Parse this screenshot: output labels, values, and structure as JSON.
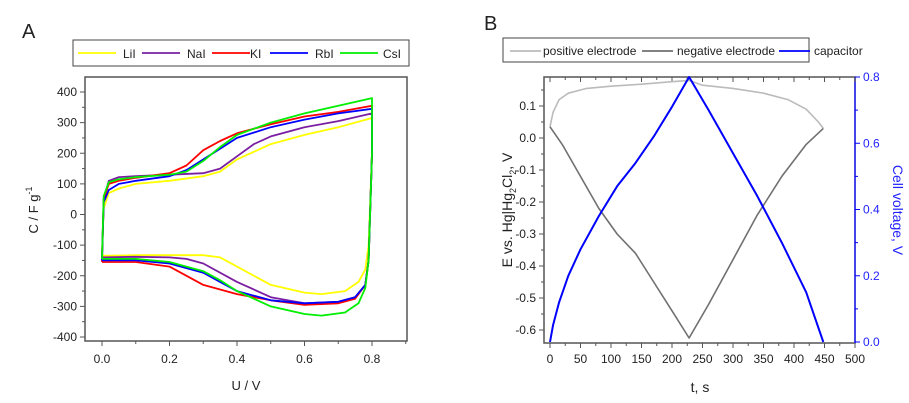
{
  "chart_data": [
    {
      "panel_label": "A",
      "type": "line",
      "title": "",
      "xlabel": "U / V",
      "ylabel": "C / F g",
      "ylabel_superscript": "-1",
      "xlim": [
        -0.05,
        0.9
      ],
      "ylim": [
        -400,
        450
      ],
      "xticks": [
        0.0,
        0.2,
        0.4,
        0.6,
        0.8
      ],
      "xtick_labels": [
        "0.0",
        "0.2",
        "0.4",
        "0.6",
        "0.8"
      ],
      "yticks": [
        -400,
        -300,
        -200,
        -100,
        0,
        100,
        200,
        300,
        400
      ],
      "ytick_labels": [
        "-400",
        "-300",
        "-200",
        "-100",
        "0",
        "100",
        "200",
        "300",
        "400"
      ],
      "grid": false,
      "legend_position": "top",
      "series": [
        {
          "name": "LiI",
          "color": "#ffff00",
          "x": [
            0.0,
            0.005,
            0.02,
            0.05,
            0.1,
            0.2,
            0.3,
            0.35,
            0.4,
            0.5,
            0.6,
            0.7,
            0.8,
            0.8,
            0.79,
            0.78,
            0.76,
            0.72,
            0.65,
            0.6,
            0.5,
            0.4,
            0.35,
            0.3,
            0.2,
            0.1,
            0.0,
            0.0
          ],
          "y": [
            -130,
            20,
            70,
            85,
            100,
            110,
            125,
            140,
            180,
            230,
            260,
            285,
            315,
            200,
            -100,
            -180,
            -220,
            -250,
            -260,
            -255,
            -230,
            -170,
            -140,
            -133,
            -133,
            -133,
            -135,
            -130
          ]
        },
        {
          "name": "NaI",
          "color": "#7b1fa2",
          "x": [
            0.0,
            0.005,
            0.02,
            0.05,
            0.1,
            0.2,
            0.3,
            0.35,
            0.4,
            0.45,
            0.5,
            0.6,
            0.7,
            0.8,
            0.8,
            0.79,
            0.78,
            0.75,
            0.7,
            0.6,
            0.5,
            0.4,
            0.3,
            0.25,
            0.2,
            0.1,
            0.0,
            0.0
          ],
          "y": [
            -140,
            50,
            110,
            122,
            125,
            130,
            135,
            150,
            190,
            230,
            255,
            285,
            305,
            330,
            200,
            -150,
            -230,
            -270,
            -285,
            -290,
            -270,
            -220,
            -160,
            -145,
            -140,
            -138,
            -140,
            -140
          ]
        },
        {
          "name": "KI",
          "color": "#ff0000",
          "x": [
            0.0,
            0.005,
            0.02,
            0.05,
            0.1,
            0.2,
            0.25,
            0.3,
            0.35,
            0.4,
            0.5,
            0.6,
            0.7,
            0.8,
            0.8,
            0.79,
            0.78,
            0.75,
            0.7,
            0.6,
            0.5,
            0.4,
            0.3,
            0.2,
            0.1,
            0.0,
            0.0
          ],
          "y": [
            -155,
            50,
            100,
            110,
            120,
            135,
            160,
            210,
            240,
            265,
            295,
            320,
            335,
            355,
            200,
            -150,
            -230,
            -275,
            -290,
            -295,
            -280,
            -260,
            -230,
            -170,
            -155,
            -155,
            -155
          ]
        },
        {
          "name": "RbI",
          "color": "#0000ff",
          "x": [
            0.0,
            0.005,
            0.02,
            0.05,
            0.1,
            0.2,
            0.25,
            0.3,
            0.35,
            0.4,
            0.5,
            0.6,
            0.7,
            0.8,
            0.8,
            0.79,
            0.78,
            0.75,
            0.7,
            0.6,
            0.5,
            0.4,
            0.35,
            0.3,
            0.2,
            0.1,
            0.0,
            0.0
          ],
          "y": [
            -150,
            40,
            80,
            100,
            110,
            125,
            145,
            180,
            215,
            250,
            285,
            310,
            330,
            345,
            200,
            -150,
            -230,
            -270,
            -285,
            -290,
            -280,
            -250,
            -220,
            -190,
            -160,
            -150,
            -150,
            -150
          ]
        },
        {
          "name": "CsI",
          "color": "#00ee00",
          "x": [
            0.0,
            0.005,
            0.02,
            0.05,
            0.1,
            0.2,
            0.25,
            0.3,
            0.35,
            0.4,
            0.5,
            0.6,
            0.7,
            0.8,
            0.8,
            0.79,
            0.78,
            0.76,
            0.72,
            0.65,
            0.6,
            0.5,
            0.4,
            0.35,
            0.3,
            0.2,
            0.1,
            0.0,
            0.0
          ],
          "y": [
            -145,
            60,
            105,
            115,
            122,
            130,
            140,
            175,
            220,
            260,
            300,
            330,
            355,
            380,
            200,
            -150,
            -240,
            -290,
            -320,
            -330,
            -325,
            -300,
            -250,
            -215,
            -185,
            -155,
            -145,
            -145,
            -145
          ]
        }
      ]
    },
    {
      "panel_label": "B",
      "type": "line",
      "title": "",
      "xlabel": "t, s",
      "ylabel": "E vs. Hg|Hg2Cl2, V",
      "ylabel_parts": [
        "E vs. Hg|Hg",
        "2",
        "Cl",
        "2",
        ", V"
      ],
      "y2label": "Cell voltage, V",
      "xlim": [
        -5,
        500
      ],
      "ylim": [
        -0.64,
        0.185
      ],
      "y2lim": [
        0.0,
        0.8
      ],
      "xticks": [
        0,
        50,
        100,
        150,
        200,
        250,
        300,
        350,
        400,
        450,
        500
      ],
      "xtick_labels": [
        "0",
        "50",
        "100",
        "150",
        "200",
        "250",
        "300",
        "350",
        "400",
        "450",
        "500"
      ],
      "yticks": [
        0.1,
        0.0,
        -0.1,
        -0.2,
        -0.3,
        -0.4,
        -0.5,
        -0.6
      ],
      "ytick_labels": [
        "0.1",
        "0.0",
        "-0.1",
        "-0.2",
        "-0.3",
        "-0.4",
        "-0.5",
        "-0.6"
      ],
      "y2ticks": [
        0.0,
        0.2,
        0.4,
        0.6,
        0.8
      ],
      "y2tick_labels": [
        "0.0",
        "0.2",
        "0.4",
        "0.6",
        "0.8"
      ],
      "y2_color": "#0000ff",
      "grid": false,
      "legend_position": "top",
      "series": [
        {
          "name": "positive electrode",
          "color": "#bbbbbb",
          "axis": "left",
          "x": [
            0,
            5,
            15,
            30,
            60,
            100,
            150,
            200,
            228,
            250,
            300,
            350,
            390,
            420,
            440,
            448
          ],
          "y": [
            0.035,
            0.08,
            0.12,
            0.14,
            0.155,
            0.162,
            0.168,
            0.176,
            0.18,
            0.165,
            0.155,
            0.14,
            0.12,
            0.09,
            0.05,
            0.03
          ]
        },
        {
          "name": "negative electrode",
          "color": "#707070",
          "axis": "left",
          "x": [
            0,
            20,
            50,
            80,
            110,
            140,
            170,
            200,
            228,
            260,
            300,
            340,
            380,
            420,
            448
          ],
          "y": [
            0.035,
            -0.02,
            -0.12,
            -0.22,
            -0.3,
            -0.36,
            -0.45,
            -0.54,
            -0.625,
            -0.52,
            -0.38,
            -0.24,
            -0.12,
            -0.02,
            0.03
          ]
        },
        {
          "name": "capacitor",
          "color": "#0000ff",
          "axis": "right",
          "x": [
            0,
            5,
            15,
            30,
            50,
            80,
            110,
            140,
            170,
            200,
            228,
            260,
            300,
            340,
            380,
            420,
            448
          ],
          "y": [
            0.0,
            0.05,
            0.12,
            0.2,
            0.28,
            0.38,
            0.47,
            0.54,
            0.62,
            0.71,
            0.8,
            0.7,
            0.57,
            0.44,
            0.3,
            0.15,
            0.0
          ]
        }
      ]
    }
  ]
}
